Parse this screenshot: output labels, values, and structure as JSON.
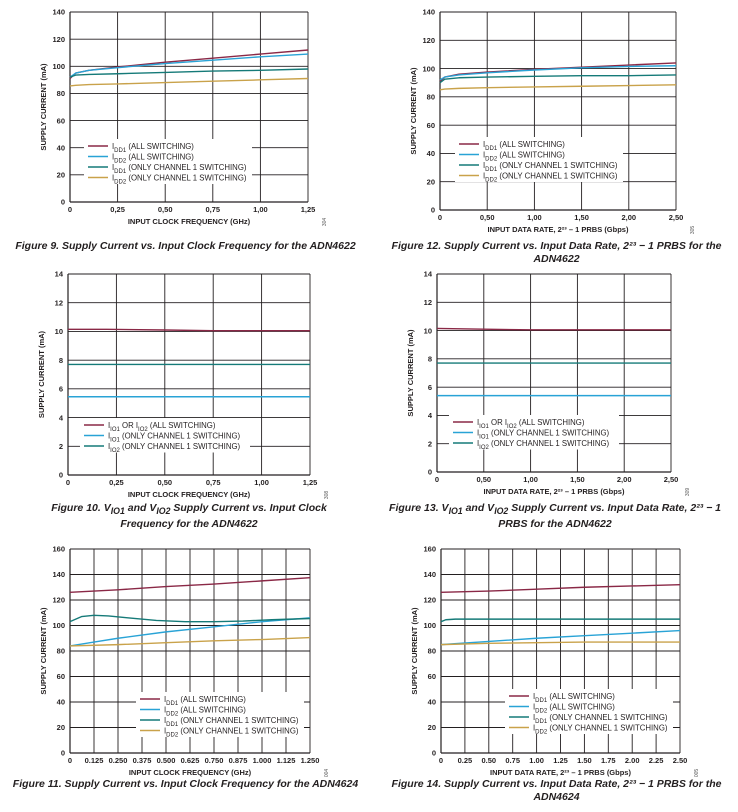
{
  "colors": {
    "maroon": "#8a2846",
    "blue": "#29a3d6",
    "teal": "#157a78",
    "gold": "#c9a24a",
    "grid": "#231f20"
  },
  "chart_data": [
    {
      "id": "fig9",
      "type": "line",
      "caption": "Figure 9. Supply Current vs. Input Clock Frequency for the ADN4622",
      "xlabel": "INPUT CLOCK FREQUENCY (GHz)",
      "ylabel": "SUPPLY CURRENT (mA)",
      "figure_code": "304",
      "xlim": [
        0,
        1.25
      ],
      "ylim": [
        0,
        140
      ],
      "xticks": [
        0,
        0.25,
        0.5,
        0.75,
        1.0,
        1.25
      ],
      "xtick_labels": [
        "0",
        "0,25",
        "0,50",
        "0,75",
        "1,00",
        "1,25"
      ],
      "yticks": [
        0,
        20,
        40,
        60,
        80,
        100,
        120,
        140
      ],
      "ytick_labels": [
        "0",
        "20",
        "40",
        "60",
        "80",
        "100",
        "120",
        "140"
      ],
      "legend": [
        "IDD1 (ALL SWITCHING)",
        "IDD2 (ALL SWITCHING)",
        "IDD1 (ONLY CHANNEL 1 SWITCHING)",
        "IDD2 (ONLY CHANNEL 1 SWITCHING)"
      ],
      "legend_parts": [
        {
          "base": "I",
          "sub": "DD1",
          "rest": " (ALL SWITCHING)"
        },
        {
          "base": "I",
          "sub": "DD2",
          "rest": " (ALL SWITCHING)"
        },
        {
          "base": "I",
          "sub": "DD1",
          "rest": " (ONLY CHANNEL 1 SWITCHING)"
        },
        {
          "base": "I",
          "sub": "DD2",
          "rest": " (ONLY CHANNEL 1 SWITCHING)"
        }
      ],
      "series": [
        {
          "color": "maroon",
          "x": [
            0,
            0.03,
            0.1,
            0.25,
            0.5,
            0.75,
            1.0,
            1.25
          ],
          "y": [
            91,
            95,
            97,
            99.5,
            103,
            106,
            109,
            112
          ]
        },
        {
          "color": "blue",
          "x": [
            0,
            0.03,
            0.1,
            0.25,
            0.5,
            0.75,
            1.0,
            1.25
          ],
          "y": [
            92,
            95,
            97,
            99,
            102,
            104.5,
            107,
            109
          ]
        },
        {
          "color": "teal",
          "x": [
            0,
            0.03,
            0.1,
            0.25,
            0.5,
            0.75,
            1.0,
            1.25
          ],
          "y": [
            92,
            93.5,
            94,
            94.5,
            95.5,
            96.5,
            97,
            98
          ]
        },
        {
          "color": "gold",
          "x": [
            0,
            0.03,
            0.1,
            0.25,
            0.5,
            0.75,
            1.0,
            1.25
          ],
          "y": [
            85.5,
            86,
            86.5,
            87,
            88,
            89,
            90,
            91
          ]
        }
      ]
    },
    {
      "id": "fig12",
      "type": "line",
      "caption": "Figure 12. Supply Current vs. Input Data Rate, 2²³ − 1 PRBS for the ADN4622",
      "xlabel": "INPUT DATA RATE, 2²³ – 1 PRBS (Gbps)",
      "ylabel": "SUPPLY CURRENT (mA)",
      "figure_code": "305",
      "xlim": [
        0,
        2.5
      ],
      "ylim": [
        0,
        140
      ],
      "xticks": [
        0,
        0.5,
        1.0,
        1.5,
        2.0,
        2.5
      ],
      "xtick_labels": [
        "0",
        "0,50",
        "1,00",
        "1,50",
        "2,00",
        "2,50"
      ],
      "yticks": [
        0,
        20,
        40,
        60,
        80,
        100,
        120,
        140
      ],
      "ytick_labels": [
        "0",
        "20",
        "40",
        "60",
        "80",
        "100",
        "120",
        "140"
      ],
      "legend": [
        "IDD1 (ALL SWITCHING)",
        "IDD2 (ALL SWITCHING)",
        "IDD1 (ONLY CHANNEL 1 SWITCHING)",
        "IDD2 (ONLY CHANNEL 1 SWITCHING)"
      ],
      "legend_parts": [
        {
          "base": "I",
          "sub": "DD1",
          "rest": " (ALL SWITCHING)"
        },
        {
          "base": "I",
          "sub": "DD2",
          "rest": " (ALL SWITCHING)"
        },
        {
          "base": "I",
          "sub": "DD1",
          "rest": " (ONLY CHANNEL 1 SWITCHING)"
        },
        {
          "base": "I",
          "sub": "DD2",
          "rest": " (ONLY CHANNEL 1 SWITCHING)"
        }
      ],
      "series": [
        {
          "color": "maroon",
          "x": [
            0,
            0.05,
            0.2,
            0.5,
            1.0,
            1.5,
            2.0,
            2.5
          ],
          "y": [
            91,
            94,
            96,
            97.5,
            99.5,
            101,
            102.5,
            104
          ]
        },
        {
          "color": "blue",
          "x": [
            0,
            0.05,
            0.2,
            0.5,
            1.0,
            1.5,
            2.0,
            2.5
          ],
          "y": [
            92,
            94,
            95.5,
            97,
            99,
            100.5,
            101.5,
            102
          ]
        },
        {
          "color": "teal",
          "x": [
            0,
            0.05,
            0.2,
            0.5,
            1.0,
            1.5,
            2.0,
            2.5
          ],
          "y": [
            90,
            92.5,
            93.5,
            94,
            94.5,
            95,
            95,
            95.5
          ]
        },
        {
          "color": "gold",
          "x": [
            0,
            0.05,
            0.2,
            0.5,
            1.0,
            1.5,
            2.0,
            2.5
          ],
          "y": [
            85,
            85.5,
            86,
            86.5,
            87,
            87.5,
            88,
            88.5
          ]
        }
      ]
    },
    {
      "id": "fig10",
      "type": "line",
      "caption": "Figure 10. VIO1 and VIO2 Supply Current vs. Input Clock Frequency for the ADN4622",
      "caption_parts": [
        "Figure 10. V",
        "IO1",
        " and V",
        "IO2",
        " Supply Current vs. Input Clock Frequency for the ADN4622"
      ],
      "xlabel": "INPUT CLOCK FREQUENCY (GHz)",
      "ylabel": "SUPPLY CURRENT (mA)",
      "figure_code": "308",
      "xlim": [
        0,
        1.25
      ],
      "ylim": [
        0,
        14
      ],
      "xticks": [
        0,
        0.25,
        0.5,
        0.75,
        1.0,
        1.25
      ],
      "xtick_labels": [
        "0",
        "0,25",
        "0,50",
        "0,75",
        "1,00",
        "1,25"
      ],
      "yticks": [
        0,
        2,
        4,
        6,
        8,
        10,
        12,
        14
      ],
      "ytick_labels": [
        "0",
        "2",
        "4",
        "6",
        "8",
        "10",
        "12",
        "14"
      ],
      "legend": [
        "IIO1 OR IIO2 (ALL SWITCHING)",
        "IIO1 (ONLY CHANNEL 1 SWITCHING)",
        "IIO2 (ONLY CHANNEL 1 SWITCHING)"
      ],
      "legend_parts": [
        {
          "base": "I",
          "sub": "IO1",
          "rest": " OR I",
          "sub2": "IO2",
          "rest2": " (ALL SWITCHING)"
        },
        {
          "base": "I",
          "sub": "IO1",
          "rest": " (ONLY CHANNEL 1 SWITCHING)"
        },
        {
          "base": "I",
          "sub": "IO2",
          "rest": " (ONLY CHANNEL 1 SWITCHING)"
        }
      ],
      "series": [
        {
          "color": "maroon",
          "x": [
            0,
            0.2,
            0.5,
            0.75,
            1.0,
            1.25
          ],
          "y": [
            10.15,
            10.15,
            10.1,
            10.05,
            10.05,
            10.05
          ]
        },
        {
          "color": "blue",
          "x": [
            0,
            1.25
          ],
          "y": [
            5.45,
            5.45
          ]
        },
        {
          "color": "teal",
          "x": [
            0,
            1.25
          ],
          "y": [
            7.7,
            7.7
          ]
        }
      ]
    },
    {
      "id": "fig13",
      "type": "line",
      "caption": "Figure 13. VIO1 and VIO2 Supply Current vs. Input Data Rate, 2²³ − 1 PRBS for the ADN4622",
      "caption_parts": [
        "Figure 13. V",
        "IO1",
        " and V",
        "IO2",
        " Supply Current vs. Input Data Rate, 2²³ − 1 PRBS for the ADN4622"
      ],
      "xlabel": "INPUT DATA RATE, 2²³ – 1 PRBS (Gbps)",
      "ylabel": "SUPPLY CURRENT (mA)",
      "figure_code": "309",
      "xlim": [
        0,
        2.5
      ],
      "ylim": [
        0,
        14
      ],
      "xticks": [
        0,
        0.5,
        1.0,
        1.5,
        2.0,
        2.5
      ],
      "xtick_labels": [
        "0",
        "0,50",
        "1,00",
        "1,50",
        "2,00",
        "2,50"
      ],
      "yticks": [
        0,
        2,
        4,
        6,
        8,
        10,
        12,
        14
      ],
      "ytick_labels": [
        "0",
        "2",
        "4",
        "6",
        "8",
        "10",
        "12",
        "14"
      ],
      "legend": [
        "IIO1 OR IIO2 (ALL SWITCHING)",
        "IIO1 (ONLY CHANNEL 1 SWITCHING)",
        "IIO2 (ONLY CHANNEL 1 SWITCHING)"
      ],
      "legend_parts": [
        {
          "base": "I",
          "sub": "IO1",
          "rest": " OR I",
          "sub2": "IO2",
          "rest2": " (ALL SWITCHING)"
        },
        {
          "base": "I",
          "sub": "IO1",
          "rest": " (ONLY CHANNEL 1 SWITCHING)"
        },
        {
          "base": "I",
          "sub": "IO2",
          "rest": " (ONLY CHANNEL 1 SWITCHING)"
        }
      ],
      "series": [
        {
          "color": "maroon",
          "x": [
            0,
            0.5,
            1.0,
            1.5,
            2.0,
            2.5
          ],
          "y": [
            10.15,
            10.1,
            10.05,
            10.05,
            10.05,
            10.05
          ]
        },
        {
          "color": "blue",
          "x": [
            0,
            2.5
          ],
          "y": [
            5.4,
            5.4
          ]
        },
        {
          "color": "teal",
          "x": [
            0,
            2.5
          ],
          "y": [
            7.7,
            7.7
          ]
        }
      ]
    },
    {
      "id": "fig11",
      "type": "line",
      "caption": "Figure 11. Supply Current vs. Input Clock Frequency for the ADN4624",
      "xlabel": "INPUT CLOCK FREQUENCY (GHz)",
      "ylabel": "SUPPLY CURRENT (mA)",
      "figure_code": "004",
      "xlim": [
        0,
        1.25
      ],
      "ylim": [
        0,
        160
      ],
      "xticks": [
        0,
        0.125,
        0.25,
        0.375,
        0.5,
        0.625,
        0.75,
        0.875,
        1.0,
        1.125,
        1.25
      ],
      "xtick_labels": [
        "0",
        "0.125",
        "0.250",
        "0.375",
        "0.500",
        "0.625",
        "0.750",
        "0.875",
        "1.000",
        "1.125",
        "1.250"
      ],
      "yticks": [
        0,
        20,
        40,
        60,
        80,
        100,
        120,
        140,
        160
      ],
      "ytick_labels": [
        "0",
        "20",
        "40",
        "60",
        "80",
        "100",
        "120",
        "140",
        "160"
      ],
      "legend": [
        "IDD1 (ALL SWITCHING)",
        "IDD2 (ALL SWITCHING)",
        "IDD1 (ONLY CHANNEL 1 SWITCHING)",
        "IDD2 (ONLY CHANNEL 1 SWITCHING)"
      ],
      "legend_parts": [
        {
          "base": "I",
          "sub": "DD1",
          "rest": " (ALL SWITCHING)"
        },
        {
          "base": "I",
          "sub": "DD2",
          "rest": " (ALL SWITCHING)"
        },
        {
          "base": "I",
          "sub": "DD1",
          "rest": " (ONLY CHANNEL 1 SWITCHING)"
        },
        {
          "base": "I",
          "sub": "DD2",
          "rest": " (ONLY CHANNEL 1 SWITCHING)"
        }
      ],
      "series": [
        {
          "color": "maroon",
          "x": [
            0,
            0.25,
            0.5,
            0.75,
            1.0,
            1.25
          ],
          "y": [
            126,
            128,
            130.5,
            132.5,
            135,
            137.5
          ]
        },
        {
          "color": "blue",
          "x": [
            0,
            0.125,
            0.25,
            0.5,
            0.75,
            1.0,
            1.25
          ],
          "y": [
            84,
            87,
            90,
            95,
            99,
            103,
            106
          ]
        },
        {
          "color": "teal",
          "x": [
            0,
            0.06,
            0.125,
            0.2,
            0.3,
            0.45,
            0.6,
            0.75,
            0.9,
            1.05,
            1.25
          ],
          "y": [
            103,
            107,
            108,
            107.5,
            106,
            104,
            103,
            103,
            103.5,
            104.5,
            105.5
          ]
        },
        {
          "color": "gold",
          "x": [
            0,
            0.25,
            0.5,
            0.75,
            1.0,
            1.25
          ],
          "y": [
            84,
            85,
            86.5,
            88,
            89,
            90.5
          ]
        }
      ]
    },
    {
      "id": "fig14",
      "type": "line",
      "caption": "Figure 14. Supply Current vs. Input Data Rate, 2²³ − 1 PRBS for the ADN4624",
      "xlabel": "INPUT DATA RATE, 2²³ – 1 PRBS (Gbps)",
      "ylabel": "SUPPLY CURRENT (mA)",
      "figure_code": "005",
      "xlim": [
        0,
        2.5
      ],
      "ylim": [
        0,
        160
      ],
      "xticks": [
        0,
        0.25,
        0.5,
        0.75,
        1.0,
        1.25,
        1.5,
        1.75,
        2.0,
        2.25,
        2.5
      ],
      "xtick_labels": [
        "0",
        "0.25",
        "0.50",
        "0.75",
        "1.00",
        "1.25",
        "1.50",
        "1.75",
        "2.00",
        "2.25",
        "2.50"
      ],
      "yticks": [
        0,
        20,
        40,
        60,
        80,
        100,
        120,
        140,
        160
      ],
      "ytick_labels": [
        "0",
        "20",
        "40",
        "60",
        "80",
        "100",
        "120",
        "140",
        "160"
      ],
      "legend": [
        "IDD1 (ALL SWITCHING)",
        "IDD2 (ALL SWITCHING)",
        "IDD1 (ONLY CHANNEL 1 SWITCHING)",
        "IDD2 (ONLY CHANNEL 1 SWITCHING)"
      ],
      "legend_parts": [
        {
          "base": "I",
          "sub": "DD1",
          "rest": " (ALL SWITCHING)"
        },
        {
          "base": "I",
          "sub": "DD2",
          "rest": " (ALL SWITCHING)"
        },
        {
          "base": "I",
          "sub": "DD1",
          "rest": " (ONLY CHANNEL 1 SWITCHING)"
        },
        {
          "base": "I",
          "sub": "DD2",
          "rest": " (ONLY CHANNEL 1 SWITCHING)"
        }
      ],
      "series": [
        {
          "color": "maroon",
          "x": [
            0,
            0.5,
            1.0,
            1.5,
            2.0,
            2.5
          ],
          "y": [
            126,
            127,
            128.5,
            130,
            131,
            132
          ]
        },
        {
          "color": "blue",
          "x": [
            0,
            0.5,
            1.0,
            1.5,
            2.0,
            2.5
          ],
          "y": [
            85,
            87.5,
            90,
            92,
            94,
            96
          ]
        },
        {
          "color": "teal",
          "x": [
            0,
            0.05,
            0.15,
            0.5,
            1.0,
            1.5,
            2.0,
            2.5
          ],
          "y": [
            103,
            104.5,
            105,
            105,
            105,
            105,
            105,
            105
          ]
        },
        {
          "color": "gold",
          "x": [
            0,
            0.5,
            1.0,
            1.5,
            2.0,
            2.5
          ],
          "y": [
            85,
            86,
            86.5,
            87,
            87,
            87
          ]
        }
      ]
    }
  ]
}
